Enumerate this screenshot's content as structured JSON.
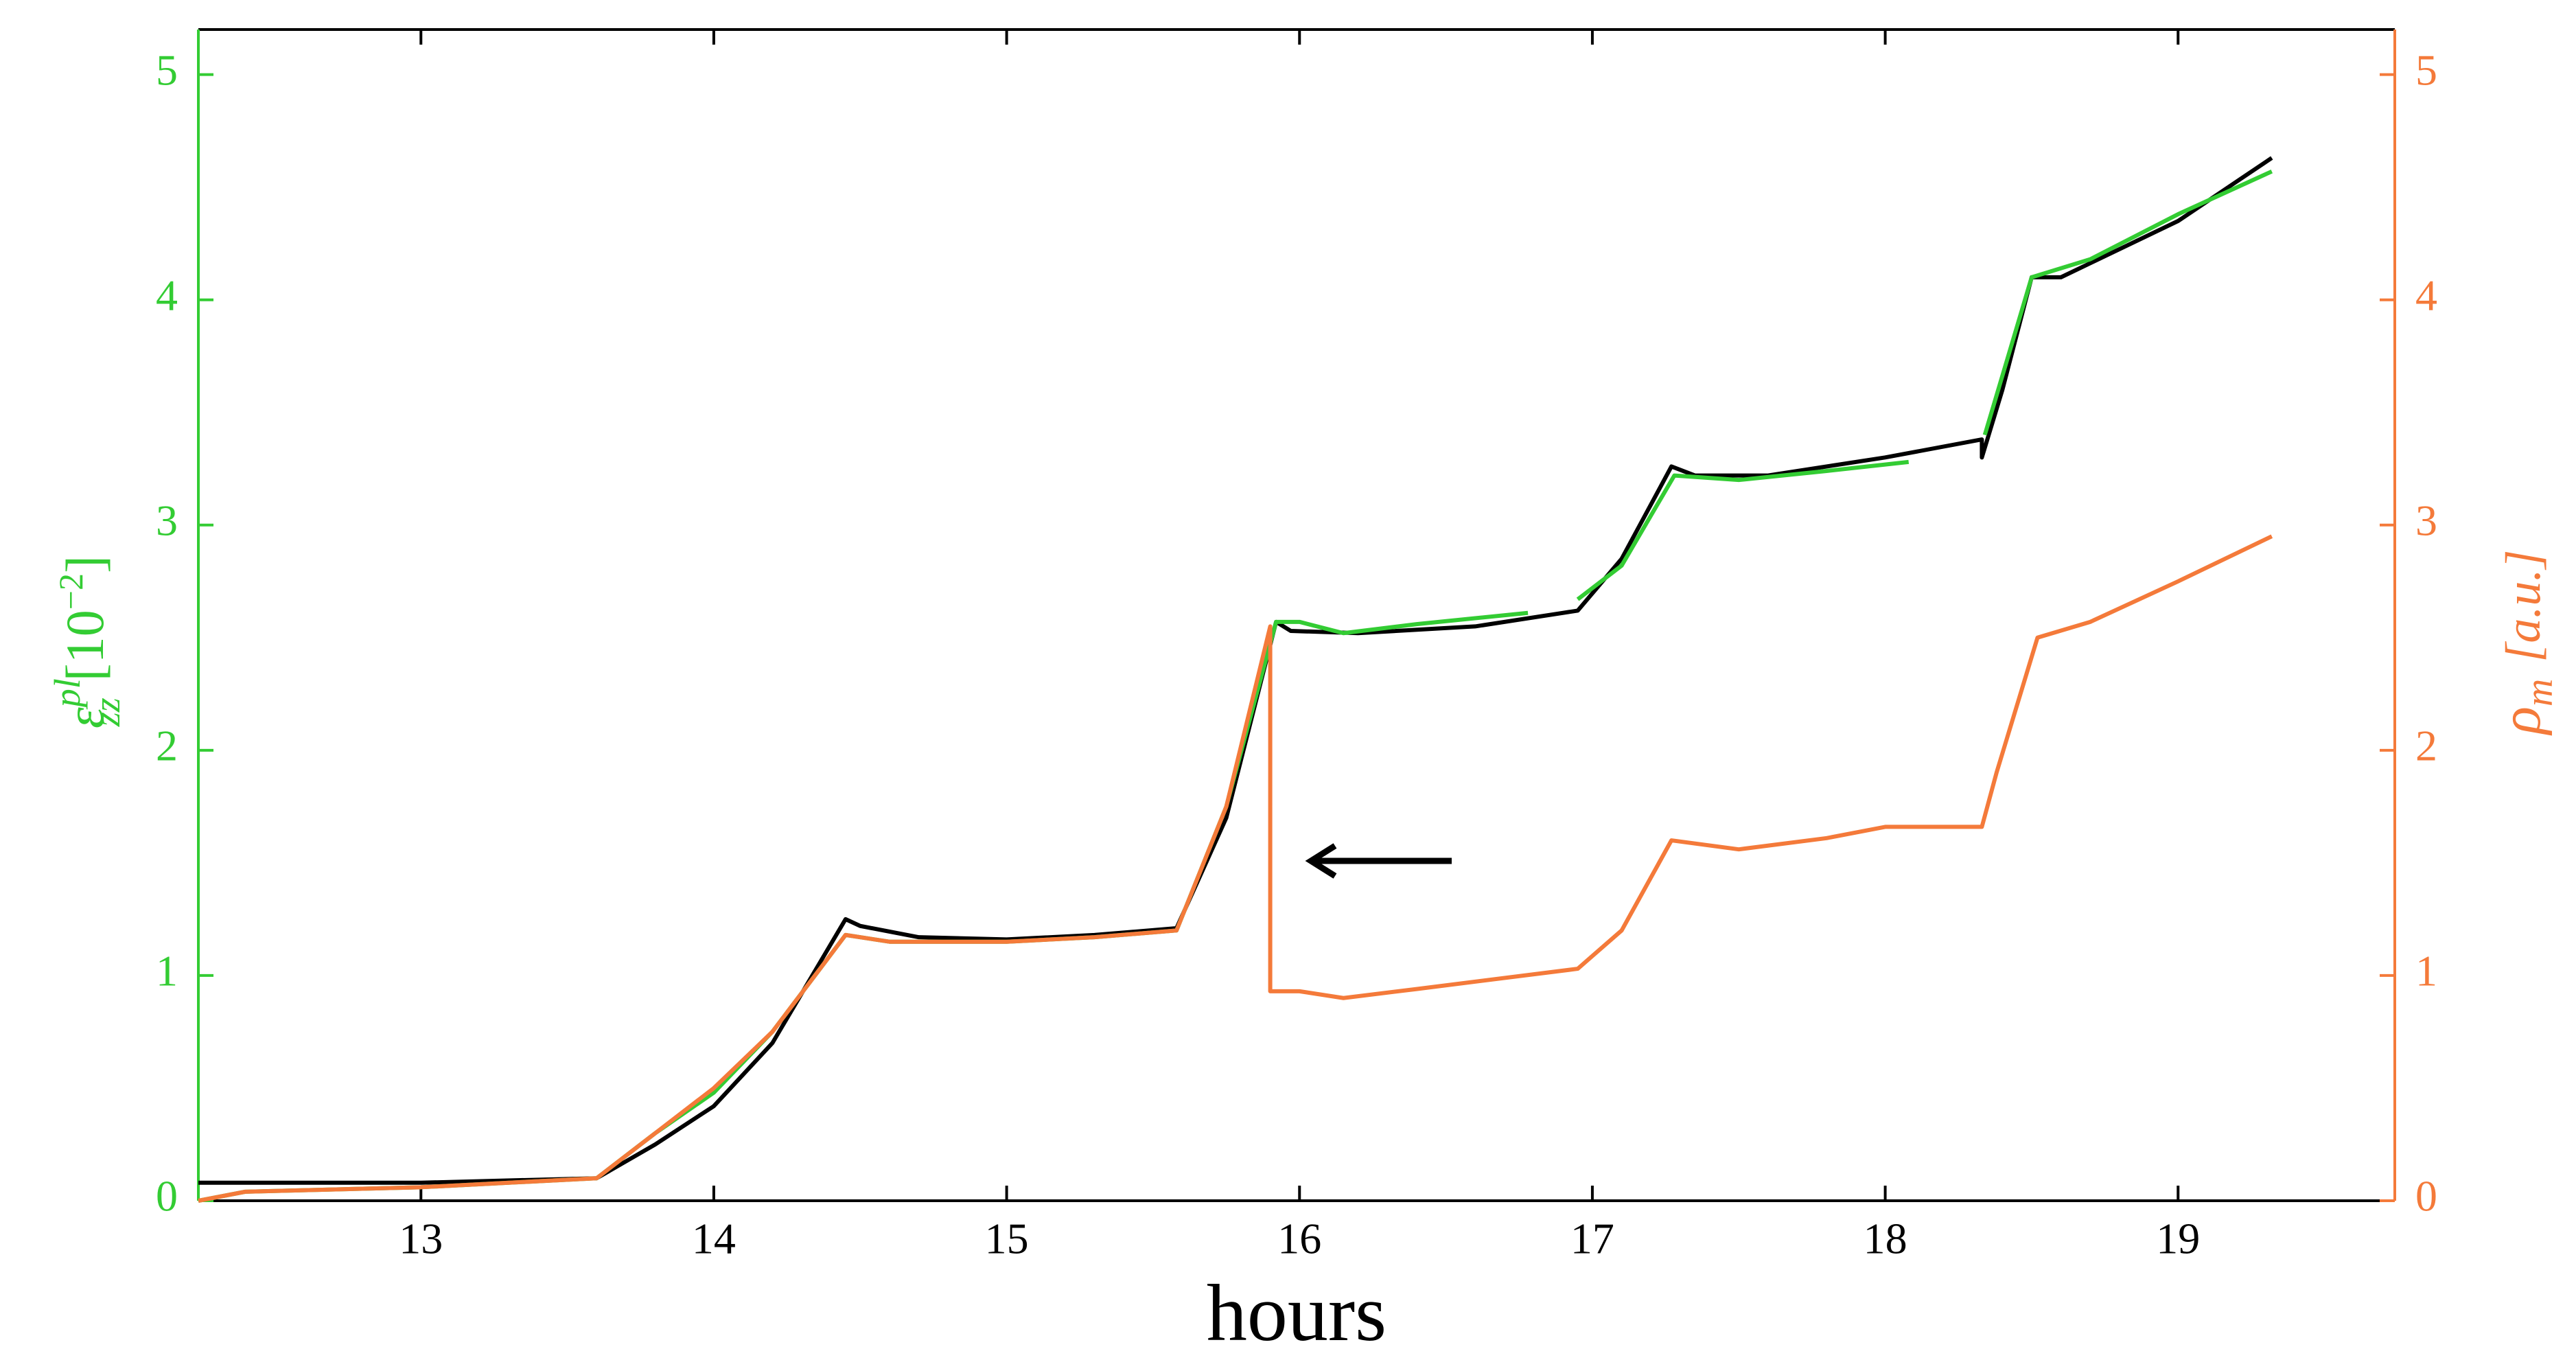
{
  "chart_data": {
    "type": "line",
    "xlabel": "hours",
    "ylabel": {
      "symbol": "ε",
      "sup": "pl",
      "sub": "zz",
      "unit": "[10",
      "unit_sup": "−2",
      "unit_end": "]"
    },
    "y2label": {
      "symbol": "ρ",
      "sub": "m",
      "unit": "[a.u.]"
    },
    "xlim": [
      12.24,
      19.74
    ],
    "xticks": [
      13,
      14,
      15,
      16,
      17,
      18,
      19
    ],
    "ylim": [
      0,
      5.2
    ],
    "yticks": [
      0,
      1,
      2,
      3,
      4,
      5
    ],
    "y2lim": [
      0,
      5.2
    ],
    "y2ticks": [
      0,
      1,
      2,
      3,
      4,
      5
    ],
    "ycolor": "#33cc33",
    "y2color": "#f47a3a",
    "series": [
      {
        "color": "#000000",
        "x": [
          12.24,
          13.0,
          13.6,
          13.8,
          14.0,
          14.2,
          14.45,
          14.5,
          14.7,
          15.0,
          15.3,
          15.58,
          15.75,
          15.92,
          15.97,
          16.2,
          16.6,
          16.95,
          17.1,
          17.27,
          17.35,
          17.6,
          18.0,
          18.33,
          18.33,
          18.4,
          18.5,
          18.6,
          19.0,
          19.32
        ],
        "values": [
          0.08,
          0.08,
          0.1,
          0.25,
          0.42,
          0.7,
          1.25,
          1.22,
          1.17,
          1.16,
          1.18,
          1.21,
          1.7,
          2.57,
          2.53,
          2.52,
          2.55,
          2.62,
          2.85,
          3.26,
          3.22,
          3.22,
          3.3,
          3.38,
          3.3,
          3.6,
          4.1,
          4.1,
          4.35,
          4.63
        ]
      },
      {
        "color": "#33cc33",
        "x": [
          12.24,
          12.4,
          13.0,
          13.6,
          13.8,
          14.0,
          14.2,
          14.45,
          14.6,
          15.0,
          15.3,
          15.58,
          15.75,
          15.92,
          16.0,
          16.15,
          16.4,
          16.78,
          16.85,
          16.95,
          17.1,
          17.28,
          17.5,
          17.8,
          18.08,
          18.2,
          18.34,
          18.5,
          18.7,
          19.0,
          19.32
        ],
        "values": [
          0.0,
          0.04,
          0.06,
          0.1,
          0.3,
          0.48,
          0.75,
          1.18,
          1.15,
          1.15,
          1.17,
          1.2,
          1.75,
          2.57,
          2.57,
          2.52,
          2.56,
          2.61,
          null,
          2.67,
          2.82,
          3.22,
          3.2,
          3.24,
          3.28,
          null,
          3.4,
          4.1,
          4.18,
          4.38,
          4.57
        ]
      },
      {
        "color": "#f47a3a",
        "axis": "y2",
        "x": [
          12.24,
          12.4,
          13.0,
          13.6,
          13.8,
          14.0,
          14.2,
          14.45,
          14.6,
          15.0,
          15.3,
          15.58,
          15.75,
          15.9,
          15.9,
          16.0,
          16.15,
          16.4,
          16.95,
          17.1,
          17.27,
          17.5,
          17.8,
          18.0,
          18.33,
          18.38,
          18.52,
          18.7,
          19.0,
          19.32
        ],
        "values": [
          0.0,
          0.04,
          0.06,
          0.1,
          0.3,
          0.5,
          0.75,
          1.18,
          1.15,
          1.15,
          1.17,
          1.2,
          1.75,
          2.55,
          0.93,
          0.93,
          0.9,
          0.94,
          1.03,
          1.2,
          1.6,
          1.56,
          1.61,
          1.66,
          1.66,
          1.9,
          2.5,
          2.57,
          2.75,
          2.95
        ]
      }
    ]
  }
}
